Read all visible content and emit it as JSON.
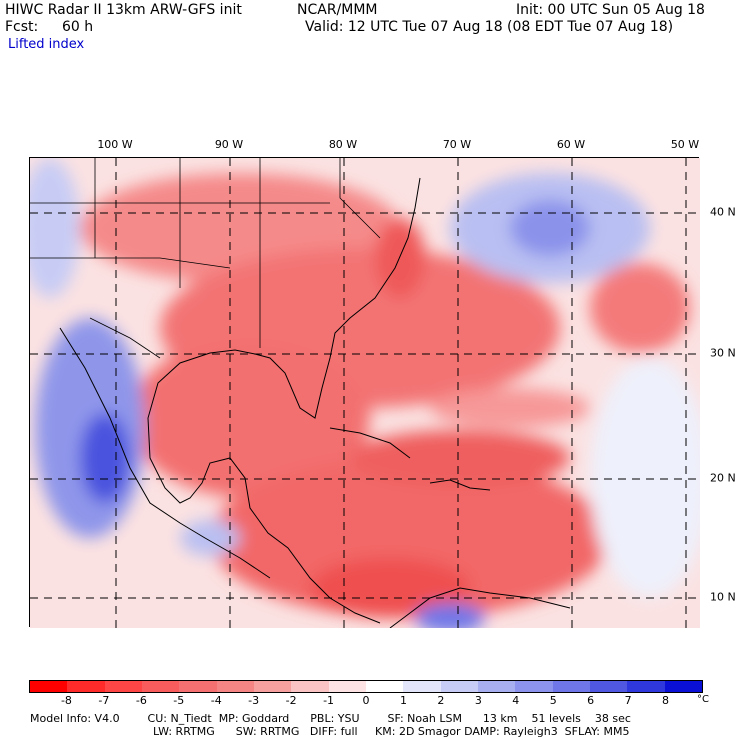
{
  "header": {
    "left_line1": "HIWC Radar II 13km ARW-GFS init",
    "center_line1": "NCAR/MMM",
    "right_line1": "Init: 00 UTC Sun 05 Aug 18",
    "left_line2_label": "Fcst:",
    "left_line2_value": "60 h",
    "right_line2": "Valid: 12 UTC Tue 07 Aug 18 (08 EDT Tue 07 Aug 18)",
    "field_name": "Lifted index"
  },
  "map": {
    "lon_labels": [
      "100 W",
      "90 W",
      "80 W",
      "70 W",
      "60 W",
      "50 W"
    ],
    "lat_labels": [
      "40 N",
      "30 N",
      "20 N",
      "10 N"
    ]
  },
  "colorbar": {
    "ticks": [
      "-8",
      "-7",
      "-6",
      "-5",
      "-4",
      "-3",
      "-2",
      "-1",
      "0",
      "1",
      "2",
      "3",
      "4",
      "5",
      "6",
      "7",
      "8"
    ],
    "unit": "°C",
    "colors": [
      "#ff0000",
      "#ff2a2a",
      "#ff4646",
      "#f85c5c",
      "#f57070",
      "#f58585",
      "#f7a0a0",
      "#fbc4c4",
      "#fde3e3",
      "#ffffff",
      "#e3e6fb",
      "#c7ccf6",
      "#a8aff0",
      "#8c93ec",
      "#6f77e8",
      "#5058e2",
      "#2f38dd",
      "#0a10d6"
    ]
  },
  "footer": {
    "line1": "Model Info: V4.0        CU: N_Tiedt  MP: Goddard      PBL: YSU        SF: Noah LSM      13 km    51 levels    38 sec",
    "line2": "LW: RRTMG      SW: RRTMG   DIFF: full     KM: 2D Smagor DAMP: Rayleigh3  SFLAY: MM5"
  }
}
